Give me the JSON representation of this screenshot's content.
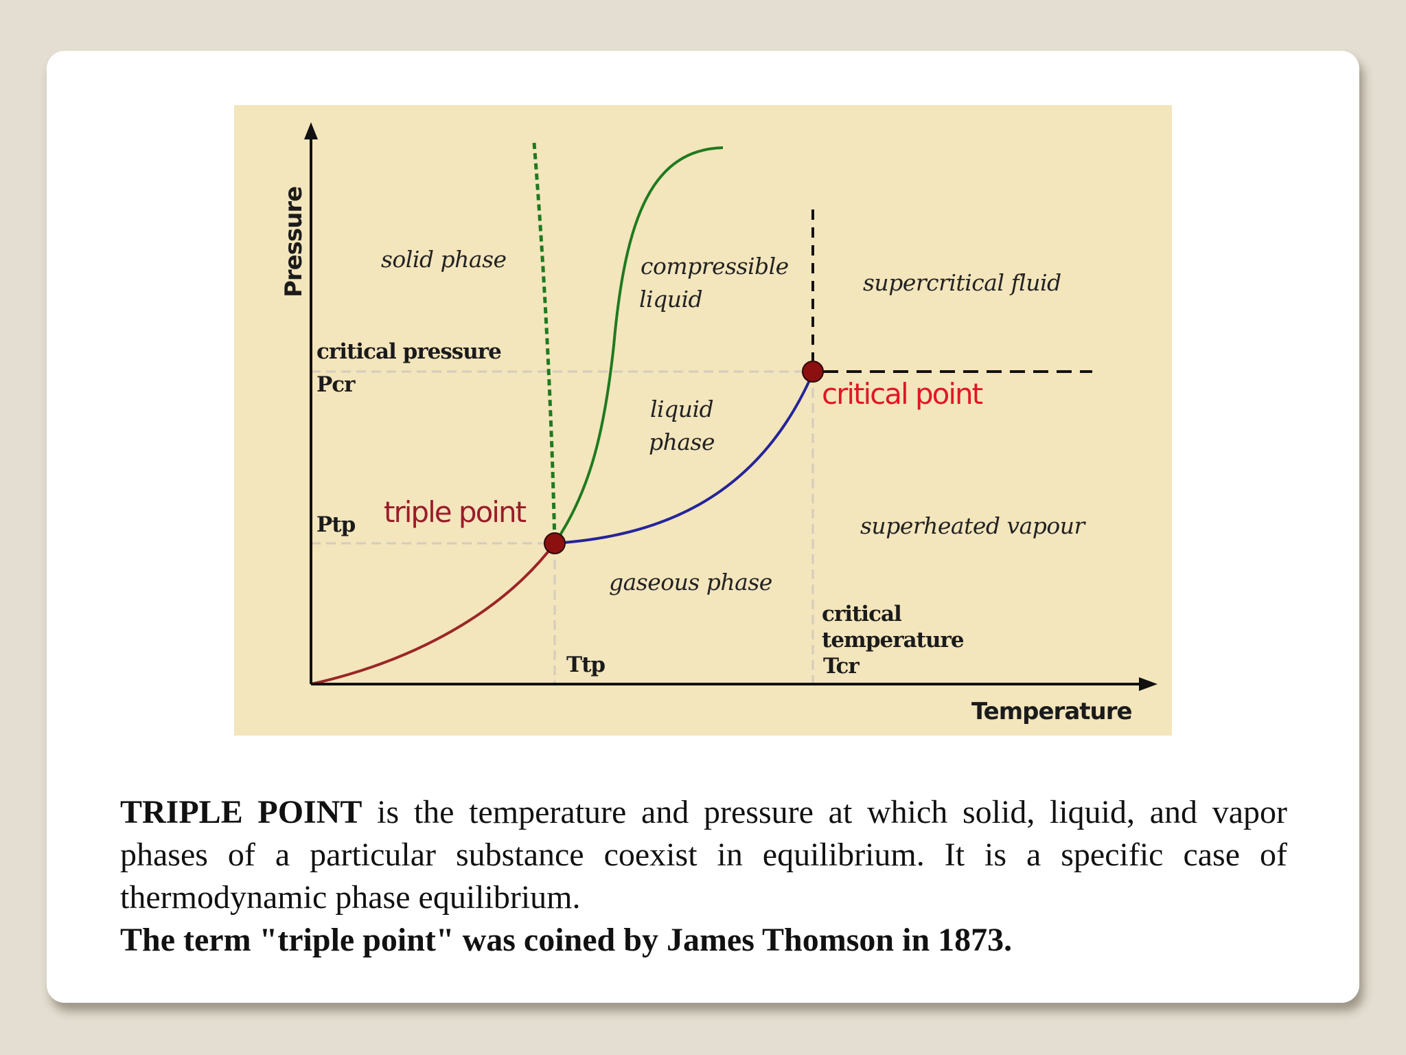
{
  "diagram": {
    "axis_y_title": "Pressure",
    "axis_x_title": "Temperature",
    "regions": {
      "solid": "solid phase",
      "compressible_line1": "compressible",
      "compressible_line2": "liquid",
      "supercritical": "supercritical fluid",
      "liquid_line1": "liquid",
      "liquid_line2": "phase",
      "superheated": "superheated vapour",
      "gaseous": "gaseous phase"
    },
    "labels": {
      "critical_pressure": "critical pressure",
      "p_cr": "Pcr",
      "p_tp": "Ptp",
      "t_tp": "Ttp",
      "critical_temp_line1": "critical",
      "critical_temp_line2": "temperature",
      "t_cr": "Tcr",
      "triple_point": "triple point",
      "critical_point": "critical point"
    },
    "colors": {
      "background": "#f3e5bc",
      "sublimation_curve": "#9a2626",
      "vaporization_curve": "#24249a",
      "fusion_curve": "#1f7a1f",
      "triple_point_label": "#9a1c2a",
      "critical_point_label": "#e01626",
      "point_marker": "#8c1010"
    }
  },
  "caption": {
    "para1_bold": "TRIPLE POINT",
    "para1_rest": " is the temperature and pressure at which solid, liquid, and vapor phases of a particular substance coexist in equilibrium. It is a specific case of thermodynamic phase equilibrium.",
    "para2": "The term \"triple point\" was coined by James Thomson in 1873."
  }
}
